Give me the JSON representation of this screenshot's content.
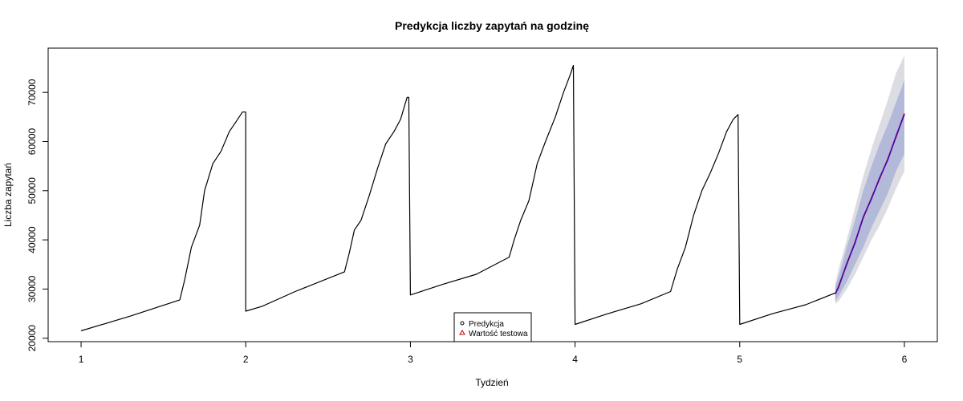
{
  "chart_data": {
    "type": "line",
    "title": "Predykcja liczby zapytań na godzinę",
    "xlabel": "Tydzień",
    "ylabel": "Liczba zapytań",
    "xlim": [
      0.8,
      6.2
    ],
    "ylim": [
      19300,
      79000
    ],
    "x_ticks": [
      1,
      2,
      3,
      4,
      5,
      6
    ],
    "y_ticks": [
      20000,
      30000,
      40000,
      50000,
      60000,
      70000
    ],
    "grid": false,
    "legend_position": "bottom-center",
    "legend": [
      {
        "label": "Predykcja",
        "marker": "circle",
        "color": "#000000"
      },
      {
        "label": "Wartość testowa",
        "marker": "triangle",
        "color": "#cc0000"
      }
    ],
    "colors": {
      "history": "#000000",
      "forecast": "#cc0000",
      "test": "#0000ff",
      "band80": "#b3b9d8",
      "band95": "#dcdde3"
    },
    "series": [
      {
        "role": "history",
        "x": [
          1.0,
          1.3,
          1.6,
          1.63,
          1.67,
          1.72,
          1.75,
          1.8,
          1.85,
          1.9,
          1.95,
          1.98,
          2.0,
          2.0,
          2.1,
          2.3,
          2.6,
          2.63,
          2.66,
          2.7,
          2.75,
          2.8,
          2.85,
          2.9,
          2.94,
          2.98,
          2.99,
          3.0,
          3.2,
          3.4,
          3.6,
          3.63,
          3.67,
          3.72,
          3.77,
          3.82,
          3.88,
          3.93,
          3.97,
          3.99,
          4.0,
          4.2,
          4.4,
          4.58,
          4.62,
          4.67,
          4.72,
          4.77,
          4.82,
          4.87,
          4.92,
          4.96,
          4.99,
          5.0,
          5.2,
          5.4,
          5.58
        ],
        "y": [
          21500,
          24500,
          27800,
          32000,
          38500,
          43000,
          50000,
          55500,
          58000,
          62000,
          64500,
          66000,
          66000,
          25500,
          26500,
          29500,
          33500,
          37500,
          42000,
          44000,
          49000,
          54500,
          59500,
          62000,
          64500,
          69000,
          69000,
          28800,
          31000,
          33000,
          36500,
          40000,
          44000,
          48000,
          55500,
          60000,
          65000,
          70000,
          73500,
          75500,
          22800,
          25000,
          27000,
          29500,
          34000,
          38500,
          45000,
          50000,
          53500,
          57500,
          62000,
          64500,
          65500,
          22800,
          25000,
          26800,
          29200
        ]
      },
      {
        "role": "forecast",
        "x": [
          5.58,
          5.6,
          5.65,
          5.7,
          5.75,
          5.8,
          5.85,
          5.9,
          5.95,
          6.0
        ],
        "y": [
          29000,
          30500,
          35000,
          39500,
          44500,
          48500,
          52500,
          56500,
          61000,
          65700
        ]
      },
      {
        "role": "test",
        "x": [
          5.58,
          5.6,
          5.65,
          5.7,
          5.75,
          5.8,
          5.85,
          5.9,
          5.95,
          6.0
        ],
        "y": [
          29000,
          30300,
          35200,
          39300,
          44700,
          48300,
          52700,
          56300,
          61200,
          65500
        ]
      }
    ],
    "interval_80": {
      "lower": [
        27500,
        28500,
        31500,
        35000,
        38500,
        42500,
        46000,
        49500,
        54000,
        57500
      ],
      "upper": [
        30500,
        32500,
        38500,
        44000,
        50000,
        55000,
        59500,
        63500,
        68000,
        72500
      ]
    },
    "interval_95": {
      "lower": [
        27000,
        27500,
        30000,
        33000,
        36500,
        40000,
        43000,
        46500,
        50500,
        54000
      ],
      "upper": [
        31000,
        34000,
        40000,
        46500,
        53000,
        58500,
        63500,
        68500,
        74000,
        77500
      ]
    }
  }
}
